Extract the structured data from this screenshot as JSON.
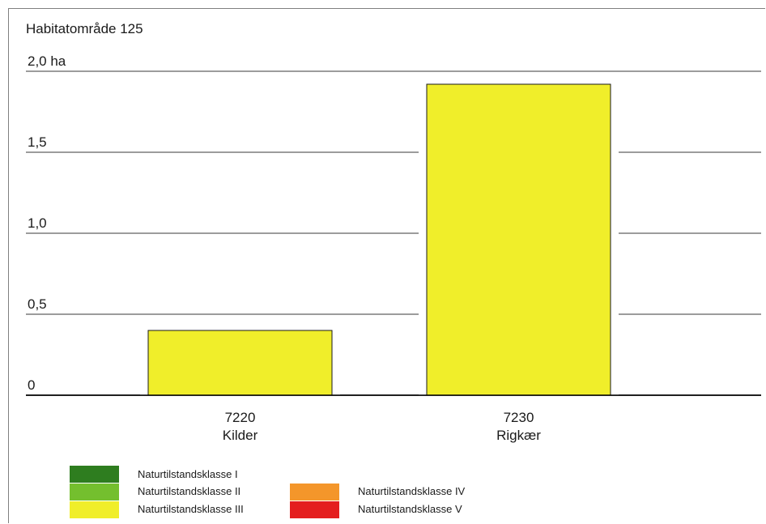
{
  "chart_data": {
    "type": "bar",
    "title": "Habitatområde 125",
    "ylim": [
      0,
      2.0
    ],
    "yticks": [
      {
        "value": 0,
        "label": "0"
      },
      {
        "value": 0.5,
        "label": "0,5"
      },
      {
        "value": 1.0,
        "label": "1,0"
      },
      {
        "value": 1.5,
        "label": "1,5"
      },
      {
        "value": 2.0,
        "label": "2,0 ha"
      }
    ],
    "grid": true,
    "categories": [
      {
        "code": "7220",
        "name": "Kilder"
      },
      {
        "code": "7230",
        "name": "Rigkær"
      }
    ],
    "series": [
      {
        "name": "Naturtilstandsklasse I",
        "color": "#2e7d1f",
        "values": [
          0,
          0
        ]
      },
      {
        "name": "Naturtilstandsklasse II",
        "color": "#74bf2e",
        "values": [
          0,
          0
        ]
      },
      {
        "name": "Naturtilstandsklasse III",
        "color": "#f0ee2a",
        "values": [
          0.4,
          1.92
        ]
      },
      {
        "name": "Naturtilstandsklasse IV",
        "color": "#f4962a",
        "values": [
          0,
          0
        ]
      },
      {
        "name": "Naturtilstandsklasse V",
        "color": "#e41e1e",
        "values": [
          0,
          0
        ]
      }
    ],
    "legend_position": "bottom"
  }
}
